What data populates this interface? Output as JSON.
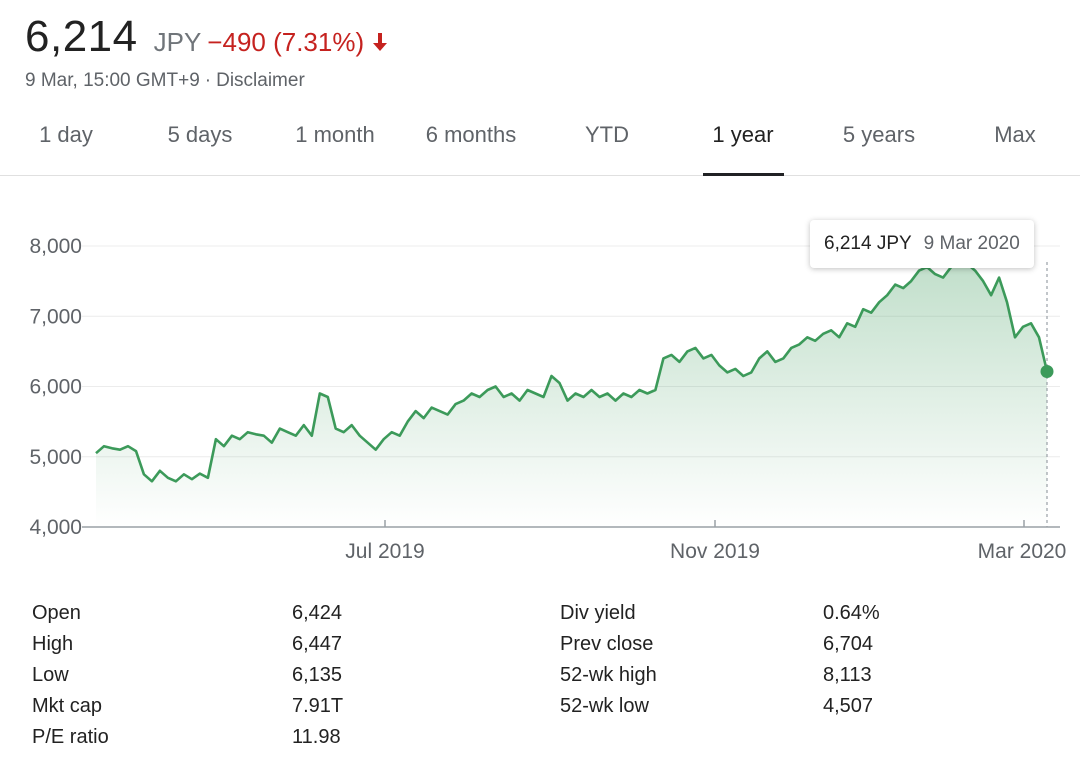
{
  "header": {
    "price": "6,214",
    "currency": "JPY",
    "change": "−490 (7.31%)",
    "timestamp": "9 Mar, 15:00 GMT+9",
    "separator": "·",
    "disclaimer": "Disclaimer",
    "change_color": "#c5221f"
  },
  "tabs": [
    {
      "label": "1 day"
    },
    {
      "label": "5 days"
    },
    {
      "label": "1 month"
    },
    {
      "label": "6 months"
    },
    {
      "label": "YTD"
    },
    {
      "label": "1 year",
      "active": true
    },
    {
      "label": "5 years"
    },
    {
      "label": "Max"
    }
  ],
  "tooltip": {
    "price": "6,214 JPY",
    "date": "9 Mar 2020"
  },
  "chart_data": {
    "type": "area",
    "ylim": [
      4000,
      8000
    ],
    "yticks": [
      4000,
      5000,
      6000,
      7000,
      8000
    ],
    "ytick_labels": [
      "4,000",
      "5,000",
      "6,000",
      "7,000",
      "8,000"
    ],
    "xtick_labels": [
      "Jul 2019",
      "Nov 2019",
      "Mar 2020"
    ],
    "grid": true,
    "line_color": "#3c9a5a",
    "fill_color": "#3c9a5a",
    "series": [
      {
        "values": [
          5050,
          5150,
          5120,
          5100,
          5150,
          5080,
          4750,
          4650,
          4800,
          4700,
          4650,
          4750,
          4680,
          4760,
          4700,
          5250,
          5150,
          5300,
          5250,
          5350,
          5320,
          5300,
          5200,
          5400,
          5350,
          5300,
          5450,
          5300,
          5900,
          5850,
          5400,
          5350,
          5450,
          5300,
          5200,
          5100,
          5250,
          5350,
          5300,
          5500,
          5650,
          5550,
          5700,
          5650,
          5600,
          5750,
          5800,
          5900,
          5850,
          5950,
          6000,
          5850,
          5900,
          5800,
          5950,
          5900,
          5850,
          6150,
          6050,
          5800,
          5900,
          5850,
          5950,
          5850,
          5900,
          5800,
          5900,
          5850,
          5950,
          5900,
          5950,
          6400,
          6450,
          6350,
          6500,
          6550,
          6400,
          6450,
          6300,
          6200,
          6250,
          6150,
          6200,
          6400,
          6500,
          6350,
          6400,
          6550,
          6600,
          6700,
          6650,
          6750,
          6800,
          6700,
          6900,
          6850,
          7100,
          7050,
          7200,
          7300,
          7450,
          7400,
          7500,
          7650,
          7700,
          7600,
          7550,
          7700,
          7800,
          7750,
          7650,
          7500,
          7300,
          7550,
          7200,
          6700,
          6850,
          6900,
          6700,
          6214
        ]
      }
    ]
  },
  "stats_left": [
    {
      "label": "Open",
      "value": "6,424"
    },
    {
      "label": "High",
      "value": "6,447"
    },
    {
      "label": "Low",
      "value": "6,135"
    },
    {
      "label": "Mkt cap",
      "value": "7.91T"
    },
    {
      "label": "P/E ratio",
      "value": "11.98"
    }
  ],
  "stats_right": [
    {
      "label": "Div yield",
      "value": "0.64%"
    },
    {
      "label": "Prev close",
      "value": "6,704"
    },
    {
      "label": "52-wk high",
      "value": "8,113"
    },
    {
      "label": "52-wk low",
      "value": "4,507"
    }
  ]
}
